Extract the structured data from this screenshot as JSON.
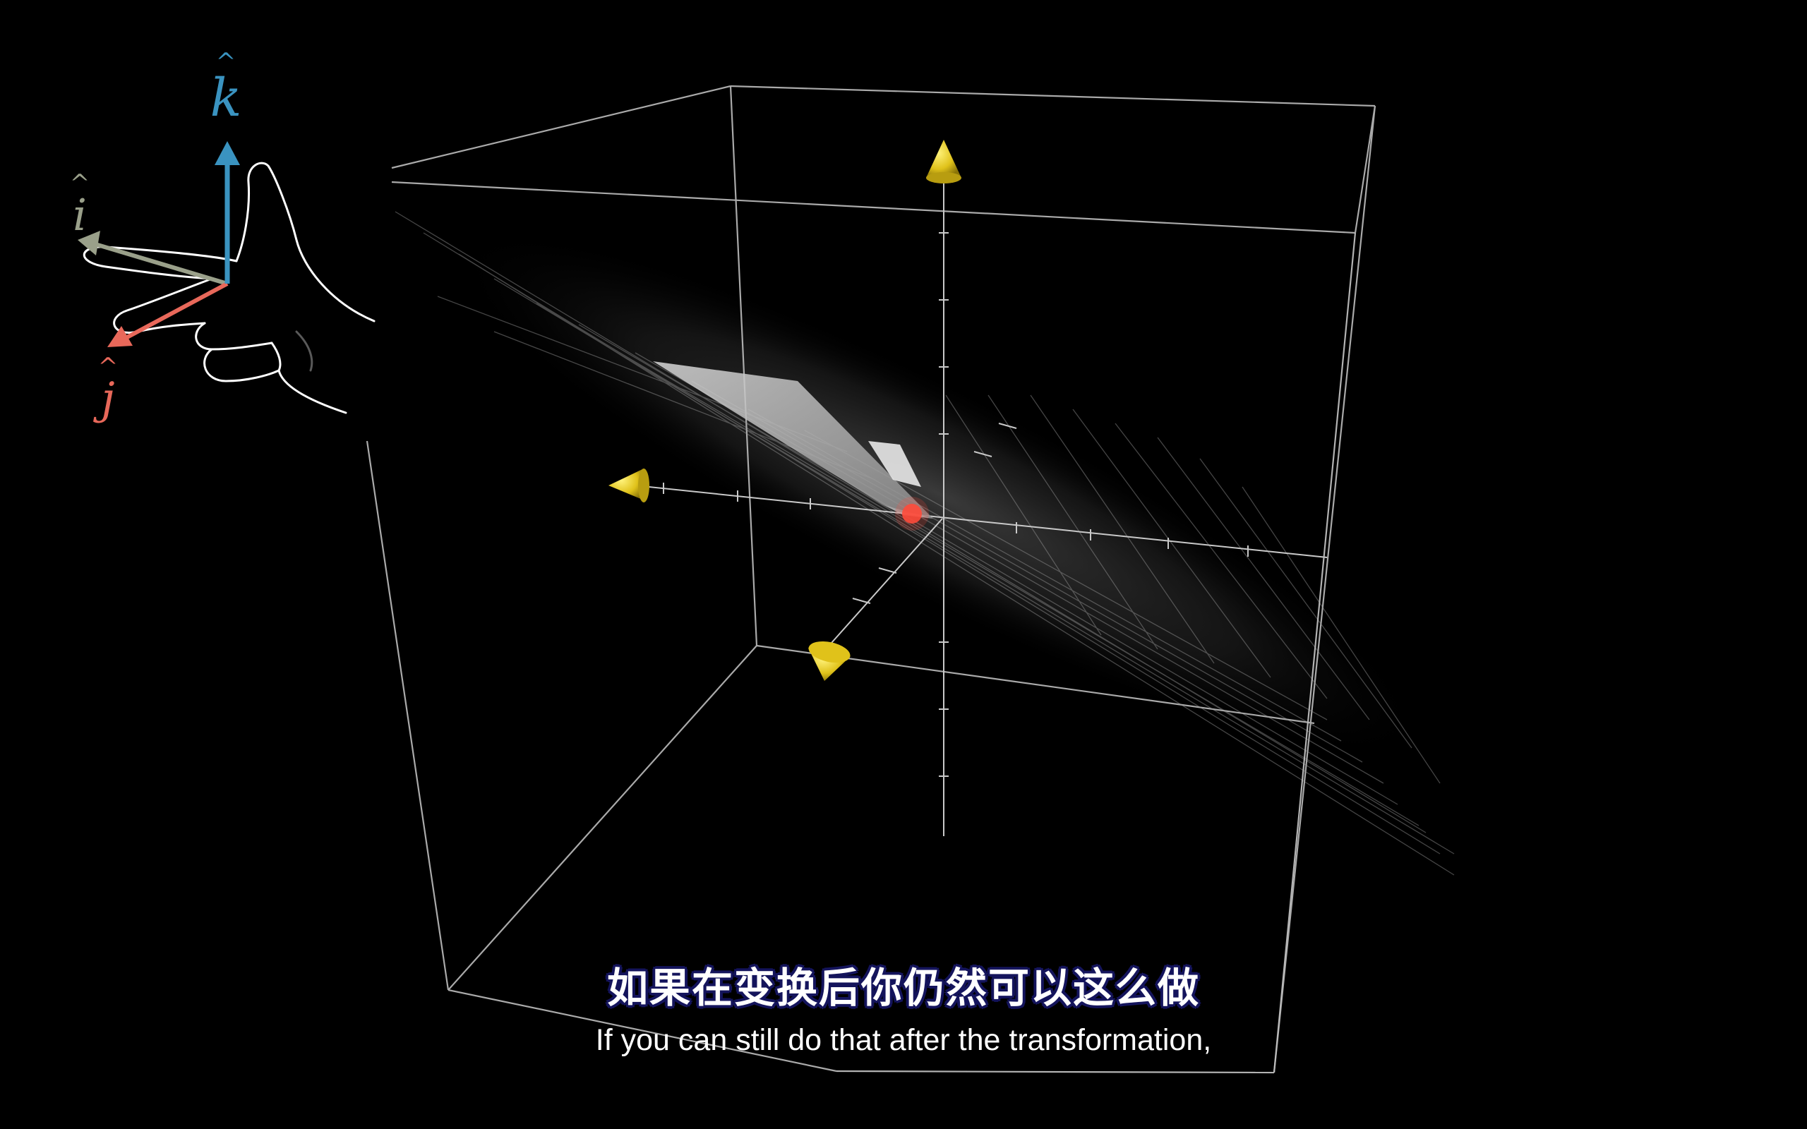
{
  "colors": {
    "background": "#000000",
    "box_edges": "#bdbdbd",
    "axes": "#c9c9c9",
    "plane_surface": "#dcdcdc",
    "basis_cones": "#e8d21a",
    "origin_marker": "#ff4a3a",
    "i_hat": "#9aa08a",
    "j_hat": "#e8685a",
    "k_hat": "#3a93c0",
    "subtitle_text": "#ffffff",
    "subtitle_outline": "#14145c"
  },
  "hand_diagram": {
    "icon": "right-hand-rule-icon",
    "i_hat_label": "i",
    "j_hat_label": "j",
    "k_hat_label": "k",
    "hat_glyph": "^"
  },
  "scene": {
    "icons": [
      "wireframe-box",
      "coordinate-axes",
      "transformed-grid-plane",
      "basis-vector-cone"
    ]
  },
  "subtitles": {
    "zh": "如果在变换后你仍然可以这么做",
    "en": "If you can still do that after the transformation,"
  }
}
